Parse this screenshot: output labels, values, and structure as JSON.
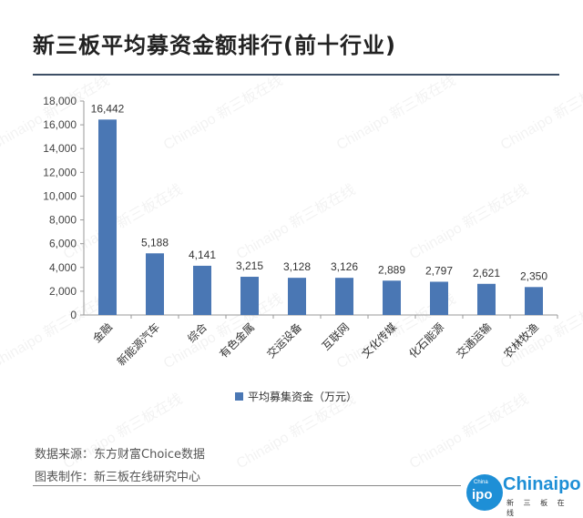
{
  "title": "新三板平均募资金额排行(前十行业)",
  "source": "数据来源：东方财富Choice数据",
  "author": "图表制作：新三板在线研究中心",
  "logo": {
    "main": "Chinaipo",
    "sub": "新 三 板 在 线",
    "badge": "ipo",
    "badge_small": "China"
  },
  "watermark": "Chinaipo 新三板在线",
  "colors": {
    "bar": "#4a77b4",
    "rule": "#3d4f66",
    "logo": "#1e8fd6"
  },
  "chart_data": {
    "type": "bar",
    "categories": [
      "金融",
      "新能源汽车",
      "综合",
      "有色金属",
      "交运设备",
      "互联网",
      "文化传媒",
      "化石能源",
      "交通运输",
      "农林牧渔"
    ],
    "series": [
      {
        "name": "平均募集资金（万元）",
        "values": [
          16442,
          5188,
          4141,
          3215,
          3128,
          3126,
          2889,
          2797,
          2621,
          2350
        ]
      }
    ],
    "data_labels": [
      "16,442",
      "5,188",
      "4,141",
      "3,215",
      "3,128",
      "3,126",
      "2,889",
      "2,797",
      "2,621",
      "2,350"
    ],
    "yticks": [
      "0",
      "2,000",
      "4,000",
      "6,000",
      "8,000",
      "10,000",
      "12,000",
      "14,000",
      "16,000",
      "18,000"
    ],
    "ylim": [
      0,
      18000
    ],
    "legend_position": "bottom",
    "grid": false
  }
}
